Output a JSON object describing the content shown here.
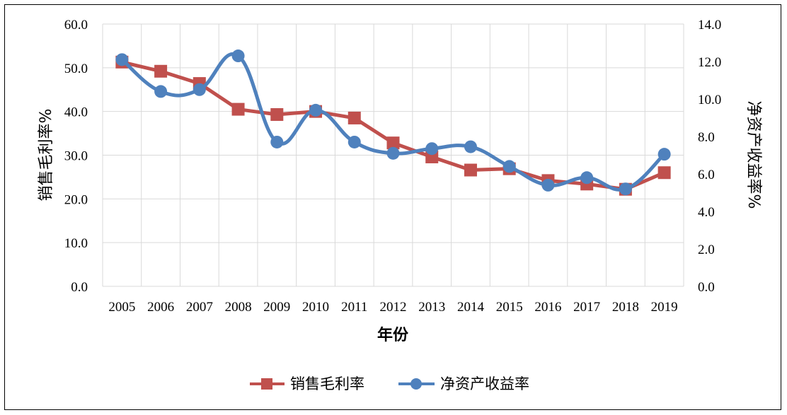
{
  "chart_data": {
    "type": "line",
    "categories": [
      "2005",
      "2006",
      "2007",
      "2008",
      "2009",
      "2010",
      "2011",
      "2012",
      "2013",
      "2014",
      "2015",
      "2016",
      "2017",
      "2018",
      "2019"
    ],
    "xlabel": "年份",
    "ylabel": "销售毛利率%",
    "y2label": "净资产收益率%",
    "ylim": [
      0,
      60
    ],
    "y2lim": [
      0,
      14
    ],
    "yticks": [
      "0.0",
      "10.0",
      "20.0",
      "30.0",
      "40.0",
      "50.0",
      "60.0"
    ],
    "y2ticks": [
      "0.0",
      "2.0",
      "4.0",
      "6.0",
      "8.0",
      "10.0",
      "12.0",
      "14.0"
    ],
    "grid": true,
    "legend_position": "bottom",
    "series": [
      {
        "name": "销售毛利率",
        "axis": "left",
        "marker": "square",
        "smooth": false,
        "color": "#C0504D",
        "values": [
          51.3,
          49.2,
          46.4,
          40.5,
          39.3,
          40.0,
          38.5,
          32.8,
          29.6,
          26.6,
          26.9,
          24.2,
          23.4,
          22.2,
          26.0
        ]
      },
      {
        "name": "净资产收益率",
        "axis": "right",
        "marker": "circle",
        "smooth": true,
        "color": "#4F81BD",
        "values": [
          12.1,
          10.4,
          10.5,
          12.3,
          7.7,
          9.4,
          7.7,
          7.1,
          7.35,
          7.45,
          6.4,
          5.4,
          5.8,
          5.2,
          7.05
        ]
      }
    ]
  }
}
